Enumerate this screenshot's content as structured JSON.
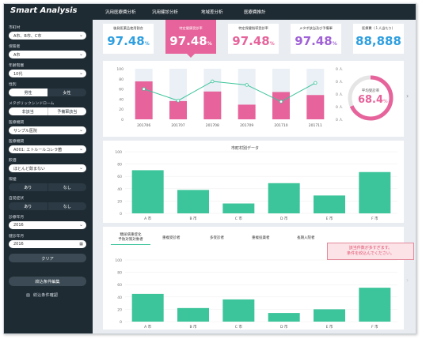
{
  "app": {
    "title": "Smart Analysis"
  },
  "nav": [
    "汎用医療費分析",
    "汎用健診分析",
    "地域差分析",
    "医療費推計"
  ],
  "filters": [
    {
      "label": "市町村",
      "value": "A市、B市、C市"
    },
    {
      "label": "保険者",
      "value": "A市"
    },
    {
      "label": "年齢階層",
      "value": "10代"
    },
    {
      "label": "性別",
      "options": [
        "男性",
        "女性"
      ]
    },
    {
      "label": "メタボリックシンドローム",
      "options": [
        "非該当",
        "予備軍該当"
      ]
    },
    {
      "label": "医療機関",
      "value": "サンプル医院"
    },
    {
      "label": "医療機関",
      "value": "A001: エトルールコレラ菌"
    },
    {
      "label": "飲酒",
      "value": "ほとんど飲まない"
    },
    {
      "label": "喫煙",
      "options": [
        "あり",
        "なし"
      ]
    },
    {
      "label": "自覚症状",
      "options": [
        "あり",
        "なし"
      ]
    },
    {
      "label": "診療年月",
      "value": "2016"
    },
    {
      "label": "健診年月",
      "value": "2016"
    }
  ],
  "buttons": {
    "clear": "クリア",
    "edit": "絞込条件編集",
    "confirm": "絞込条件確認"
  },
  "kpis": [
    {
      "title": "後発医薬品使用割合",
      "value": "97.48",
      "unit": "%",
      "color": "#2f9fe0"
    },
    {
      "title": "特定健康受診率",
      "value": "97.48",
      "unit": "%",
      "color": "#ffffff",
      "active": true
    },
    {
      "title": "特定保健指導受診率",
      "value": "97.48",
      "unit": "%",
      "color": "#e6649b"
    },
    {
      "title": "メタボ該当及び予備軍",
      "value": "97.48",
      "unit": "%",
      "color": "#a062d6"
    },
    {
      "title": "医療費（１人当たり）",
      "value": "88,888",
      "unit": "",
      "color": "#2f9fe0"
    }
  ],
  "gauge": {
    "label": "平均受診率",
    "value": "68.4",
    "unit": "%",
    "fraction": 0.684
  },
  "alert": {
    "line1": "該当件数が多すぎます。",
    "line2": "条件を絞込んでください。"
  },
  "bottom_tabs": [
    "糖尿病重症化\n予防対策対象者",
    "重複受診者",
    "多受診者",
    "重複投薬者",
    "長期入院者"
  ],
  "main_chart_title": "市町村別データ",
  "colors": {
    "pink": "#e6649b",
    "green": "#3cc49a",
    "line": "#3cc49a",
    "barbg": "#eaf0f6"
  },
  "chart_data": [
    {
      "type": "bar",
      "categories": [
        "201706",
        "201707",
        "201708",
        "201709",
        "201710",
        "201711"
      ],
      "series": [
        {
          "values": [
            75,
            36,
            55,
            29,
            54,
            48
          ]
        },
        {
          "values": [
            60,
            37,
            75,
            68,
            35,
            72
          ]
        }
      ],
      "ylabel_right_ticks": [
        "0 人",
        "0 人",
        "0 人",
        "0 人",
        "0 人"
      ],
      "ylabel_left_ticks": [
        "100",
        "80",
        "60",
        "40",
        "20",
        "0"
      ],
      "ylim": [
        0,
        100
      ]
    },
    {
      "type": "bar",
      "title": "市町村別データ",
      "categories": [
        "A 市",
        "B 市",
        "C 市",
        "D 市",
        "E 市",
        "F 市"
      ],
      "values": [
        70,
        38,
        16,
        49,
        29,
        67
      ],
      "ylim": [
        0,
        100
      ],
      "yticks": [
        "100",
        "80",
        "60",
        "40",
        "20",
        "0"
      ]
    },
    {
      "type": "bar",
      "categories": [
        "A 市",
        "B 市",
        "C 市",
        "D 市",
        "E 市",
        "F 市"
      ],
      "values": [
        45,
        22,
        36,
        14,
        20,
        55
      ],
      "ylim": [
        0,
        100
      ],
      "yticks": [
        "100",
        "80",
        "60",
        "40",
        "20",
        "0"
      ]
    }
  ]
}
